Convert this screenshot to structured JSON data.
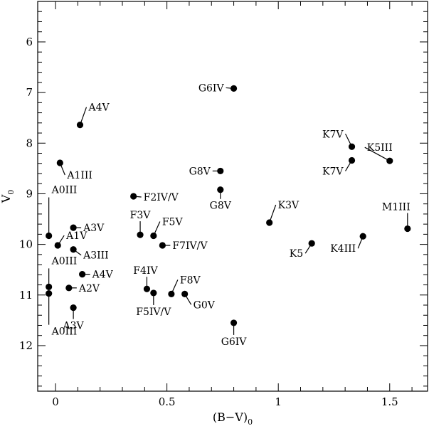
{
  "chart_data": {
    "type": "scatter",
    "xlabel": "(B−V)",
    "xlabel_sub": "0",
    "ylabel": "V",
    "ylabel_sub": "0",
    "xlim": [
      -0.08,
      1.67
    ],
    "ylim": [
      12.9,
      5.2
    ],
    "y_inverted": true,
    "grid": false,
    "x_ticks_major": [
      0,
      0.5,
      1,
      1.5
    ],
    "x_tick_labels": [
      "0",
      "0.5",
      "1",
      "1.5"
    ],
    "y_ticks_major": [
      6,
      7,
      8,
      9,
      10,
      11,
      12
    ],
    "y_tick_labels": [
      "6",
      "7",
      "8",
      "9",
      "10",
      "11",
      "12"
    ],
    "points": [
      {
        "x": 0.8,
        "y": 6.92,
        "label": "G6IV"
      },
      {
        "x": 0.11,
        "y": 7.64,
        "label": "A4V"
      },
      {
        "x": 1.33,
        "y": 8.07,
        "label": "K7V"
      },
      {
        "x": 1.33,
        "y": 8.34,
        "label": "K7V"
      },
      {
        "x": 1.5,
        "y": 8.35,
        "label": "K5III"
      },
      {
        "x": 0.02,
        "y": 8.39,
        "label": "A1III"
      },
      {
        "x": 0.74,
        "y": 8.55,
        "label": "G8V"
      },
      {
        "x": 0.74,
        "y": 8.92,
        "label": "G8V"
      },
      {
        "x": 0.35,
        "y": 9.05,
        "label": "F2IV/V"
      },
      {
        "x": 0.96,
        "y": 9.57,
        "label": "K3V"
      },
      {
        "x": 1.58,
        "y": 9.69,
        "label": "M1III"
      },
      {
        "x": -0.03,
        "y": 9.83,
        "label": "A0III"
      },
      {
        "x": 0.08,
        "y": 9.67,
        "label": "A3V"
      },
      {
        "x": 0.38,
        "y": 9.81,
        "label": "F3V"
      },
      {
        "x": 0.44,
        "y": 9.83,
        "label": "F5V"
      },
      {
        "x": 1.38,
        "y": 9.84,
        "label": "K4III"
      },
      {
        "x": 1.15,
        "y": 9.98,
        "label": "K5"
      },
      {
        "x": 0.01,
        "y": 10.02,
        "label": "A1V"
      },
      {
        "x": 0.48,
        "y": 10.02,
        "label": "F7IV/V"
      },
      {
        "x": 0.08,
        "y": 10.1,
        "label": "A3III"
      },
      {
        "x": 0.12,
        "y": 10.59,
        "label": "A4V"
      },
      {
        "x": -0.03,
        "y": 10.84,
        "label": "A0III"
      },
      {
        "x": 0.06,
        "y": 10.86,
        "label": "A2V"
      },
      {
        "x": 0.41,
        "y": 10.88,
        "label": "F4IV"
      },
      {
        "x": 0.52,
        "y": 10.98,
        "label": "F8V"
      },
      {
        "x": 0.44,
        "y": 10.96,
        "label": "F5IV/V"
      },
      {
        "x": 0.58,
        "y": 10.98,
        "label": "G0V"
      },
      {
        "x": -0.03,
        "y": 10.97,
        "label": "A0III"
      },
      {
        "x": 0.08,
        "y": 11.25,
        "label": "A3V"
      },
      {
        "x": 0.8,
        "y": 11.55,
        "label": "G6IV"
      }
    ]
  }
}
